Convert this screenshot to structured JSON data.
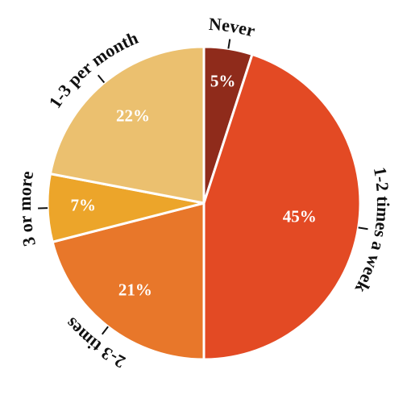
{
  "chart_data": {
    "type": "pie",
    "categories": [
      "Never",
      "1-2 times a week",
      "2-3 times",
      "3 or more",
      "1-3 per month"
    ],
    "values": [
      5,
      45,
      21,
      7,
      22
    ],
    "value_labels": [
      "5%",
      "45%",
      "21%",
      "7%",
      "22%"
    ],
    "colors": [
      "#8f2b1b",
      "#e34a24",
      "#e8772a",
      "#eca52a",
      "#ebc06f"
    ]
  }
}
